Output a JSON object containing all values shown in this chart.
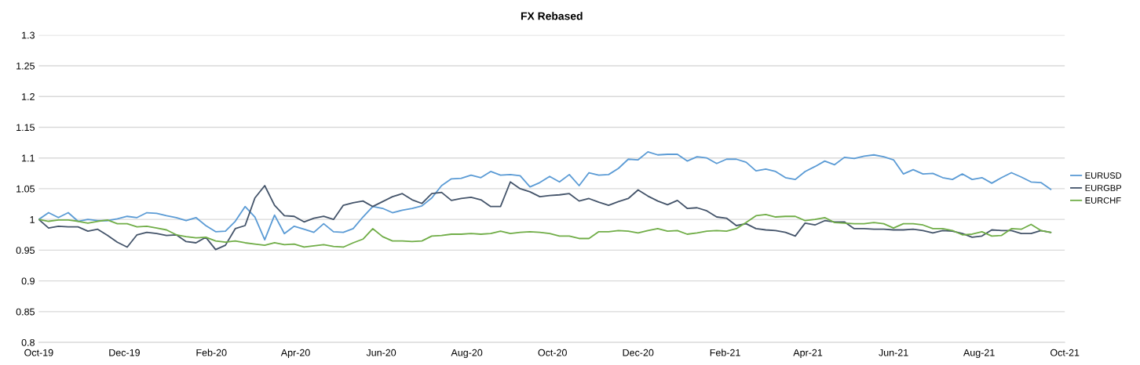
{
  "chart_data": {
    "type": "line",
    "title": "FX Rebased",
    "x": [
      "2019-10-01",
      "2019-10-08",
      "2019-10-15",
      "2019-10-22",
      "2019-10-29",
      "2019-11-05",
      "2019-11-12",
      "2019-11-19",
      "2019-11-26",
      "2019-12-03",
      "2019-12-10",
      "2019-12-17",
      "2019-12-24",
      "2019-12-31",
      "2020-01-07",
      "2020-01-14",
      "2020-01-21",
      "2020-01-28",
      "2020-02-04",
      "2020-02-11",
      "2020-02-18",
      "2020-02-25",
      "2020-03-03",
      "2020-03-10",
      "2020-03-17",
      "2020-03-24",
      "2020-03-31",
      "2020-04-07",
      "2020-04-14",
      "2020-04-21",
      "2020-04-28",
      "2020-05-05",
      "2020-05-12",
      "2020-05-19",
      "2020-05-26",
      "2020-06-02",
      "2020-06-09",
      "2020-06-16",
      "2020-06-23",
      "2020-06-30",
      "2020-07-07",
      "2020-07-14",
      "2020-07-21",
      "2020-07-28",
      "2020-08-04",
      "2020-08-11",
      "2020-08-18",
      "2020-08-25",
      "2020-09-01",
      "2020-09-08",
      "2020-09-15",
      "2020-09-22",
      "2020-09-29",
      "2020-10-06",
      "2020-10-13",
      "2020-10-20",
      "2020-10-27",
      "2020-11-03",
      "2020-11-10",
      "2020-11-17",
      "2020-11-24",
      "2020-12-01",
      "2020-12-08",
      "2020-12-15",
      "2020-12-22",
      "2020-12-29",
      "2021-01-05",
      "2021-01-12",
      "2021-01-19",
      "2021-01-26",
      "2021-02-02",
      "2021-02-09",
      "2021-02-16",
      "2021-02-23",
      "2021-03-02",
      "2021-03-09",
      "2021-03-16",
      "2021-03-23",
      "2021-03-30",
      "2021-04-06",
      "2021-04-13",
      "2021-04-20",
      "2021-04-27",
      "2021-05-04",
      "2021-05-11",
      "2021-05-18",
      "2021-05-25",
      "2021-06-01",
      "2021-06-08",
      "2021-06-15",
      "2021-06-22",
      "2021-06-29",
      "2021-07-06",
      "2021-07-13",
      "2021-07-20",
      "2021-07-27",
      "2021-08-03",
      "2021-08-10",
      "2021-08-17",
      "2021-08-24",
      "2021-08-31",
      "2021-09-07",
      "2021-09-14",
      "2021-09-21"
    ],
    "series": [
      {
        "name": "EURUSD",
        "color": "#5b9bd5",
        "values": [
          1.0,
          1.011,
          1.003,
          1.011,
          0.997,
          1.0,
          0.998,
          0.998,
          1.001,
          1.005,
          1.003,
          1.011,
          1.01,
          1.006,
          1.003,
          0.998,
          1.003,
          0.99,
          0.98,
          0.981,
          0.997,
          1.021,
          1.004,
          0.967,
          1.007,
          0.977,
          0.989,
          0.984,
          0.979,
          0.993,
          0.98,
          0.979,
          0.985,
          1.004,
          1.021,
          1.018,
          1.011,
          1.015,
          1.018,
          1.022,
          1.035,
          1.055,
          1.066,
          1.067,
          1.072,
          1.068,
          1.078,
          1.072,
          1.073,
          1.071,
          1.053,
          1.06,
          1.07,
          1.061,
          1.073,
          1.055,
          1.076,
          1.072,
          1.073,
          1.083,
          1.098,
          1.097,
          1.11,
          1.105,
          1.106,
          1.106,
          1.095,
          1.102,
          1.1,
          1.091,
          1.098,
          1.098,
          1.093,
          1.079,
          1.082,
          1.078,
          1.068,
          1.065,
          1.078,
          1.086,
          1.095,
          1.089,
          1.101,
          1.099,
          1.103,
          1.105,
          1.102,
          1.097,
          1.074,
          1.081,
          1.074,
          1.075,
          1.068,
          1.065,
          1.074,
          1.065,
          1.068,
          1.059,
          1.068,
          1.076,
          1.069,
          1.061,
          1.06,
          1.049
        ]
      },
      {
        "name": "EURGBP",
        "color": "#44546a",
        "values": [
          1.0,
          0.986,
          0.989,
          0.988,
          0.988,
          0.981,
          0.984,
          0.974,
          0.963,
          0.955,
          0.975,
          0.979,
          0.977,
          0.974,
          0.975,
          0.964,
          0.962,
          0.971,
          0.951,
          0.958,
          0.985,
          0.99,
          1.035,
          1.055,
          1.023,
          1.006,
          1.005,
          0.996,
          1.002,
          1.005,
          1.0,
          1.023,
          1.027,
          1.03,
          1.021,
          1.029,
          1.037,
          1.042,
          1.032,
          1.026,
          1.042,
          1.044,
          1.031,
          1.034,
          1.036,
          1.032,
          1.021,
          1.021,
          1.061,
          1.05,
          1.045,
          1.037,
          1.039,
          1.04,
          1.042,
          1.03,
          1.034,
          1.028,
          1.023,
          1.029,
          1.034,
          1.048,
          1.038,
          1.03,
          1.024,
          1.031,
          1.018,
          1.019,
          1.014,
          1.004,
          1.002,
          0.99,
          0.993,
          0.985,
          0.983,
          0.982,
          0.979,
          0.973,
          0.994,
          0.991,
          0.998,
          0.996,
          0.996,
          0.985,
          0.985,
          0.984,
          0.984,
          0.983,
          0.983,
          0.984,
          0.982,
          0.978,
          0.982,
          0.981,
          0.977,
          0.971,
          0.973,
          0.983,
          0.982,
          0.982,
          0.977,
          0.977,
          0.982,
          0.979
        ]
      },
      {
        "name": "EURCHF",
        "color": "#70ad47",
        "values": [
          1.0,
          0.997,
          0.999,
          0.999,
          0.997,
          0.994,
          0.997,
          0.999,
          0.993,
          0.993,
          0.988,
          0.989,
          0.986,
          0.983,
          0.975,
          0.972,
          0.97,
          0.971,
          0.965,
          0.963,
          0.965,
          0.962,
          0.96,
          0.958,
          0.962,
          0.959,
          0.96,
          0.955,
          0.957,
          0.959,
          0.956,
          0.955,
          0.962,
          0.968,
          0.985,
          0.972,
          0.965,
          0.965,
          0.964,
          0.965,
          0.973,
          0.974,
          0.976,
          0.976,
          0.977,
          0.976,
          0.977,
          0.981,
          0.977,
          0.979,
          0.98,
          0.979,
          0.977,
          0.973,
          0.973,
          0.969,
          0.969,
          0.98,
          0.98,
          0.982,
          0.981,
          0.978,
          0.982,
          0.985,
          0.981,
          0.982,
          0.976,
          0.978,
          0.981,
          0.982,
          0.981,
          0.985,
          0.995,
          1.006,
          1.008,
          1.004,
          1.005,
          1.005,
          0.998,
          1.0,
          1.003,
          0.995,
          0.994,
          0.993,
          0.993,
          0.995,
          0.993,
          0.986,
          0.993,
          0.993,
          0.991,
          0.985,
          0.985,
          0.982,
          0.975,
          0.976,
          0.98,
          0.973,
          0.974,
          0.985,
          0.984,
          0.992,
          0.982,
          0.979
        ]
      }
    ],
    "xlim": [
      "2019-10-01",
      "2021-10-01"
    ],
    "xticks": [
      {
        "value": "2019-10-01",
        "label": "Oct-19"
      },
      {
        "value": "2019-12-01",
        "label": "Dec-19"
      },
      {
        "value": "2020-02-01",
        "label": "Feb-20"
      },
      {
        "value": "2020-04-01",
        "label": "Apr-20"
      },
      {
        "value": "2020-06-01",
        "label": "Jun-20"
      },
      {
        "value": "2020-08-01",
        "label": "Aug-20"
      },
      {
        "value": "2020-10-01",
        "label": "Oct-20"
      },
      {
        "value": "2020-12-01",
        "label": "Dec-20"
      },
      {
        "value": "2021-02-01",
        "label": "Feb-21"
      },
      {
        "value": "2021-04-01",
        "label": "Apr-21"
      },
      {
        "value": "2021-06-01",
        "label": "Jun-21"
      },
      {
        "value": "2021-08-01",
        "label": "Aug-21"
      },
      {
        "value": "2021-10-01",
        "label": "Oct-21"
      }
    ],
    "ylim": [
      0.8,
      1.3
    ],
    "yticks": [
      0.8,
      0.85,
      0.9,
      0.95,
      1,
      1.05,
      1.1,
      1.15,
      1.2,
      1.25,
      1.3
    ],
    "grid": "y",
    "legend": "right",
    "marker": "none",
    "line_style": "solid"
  }
}
